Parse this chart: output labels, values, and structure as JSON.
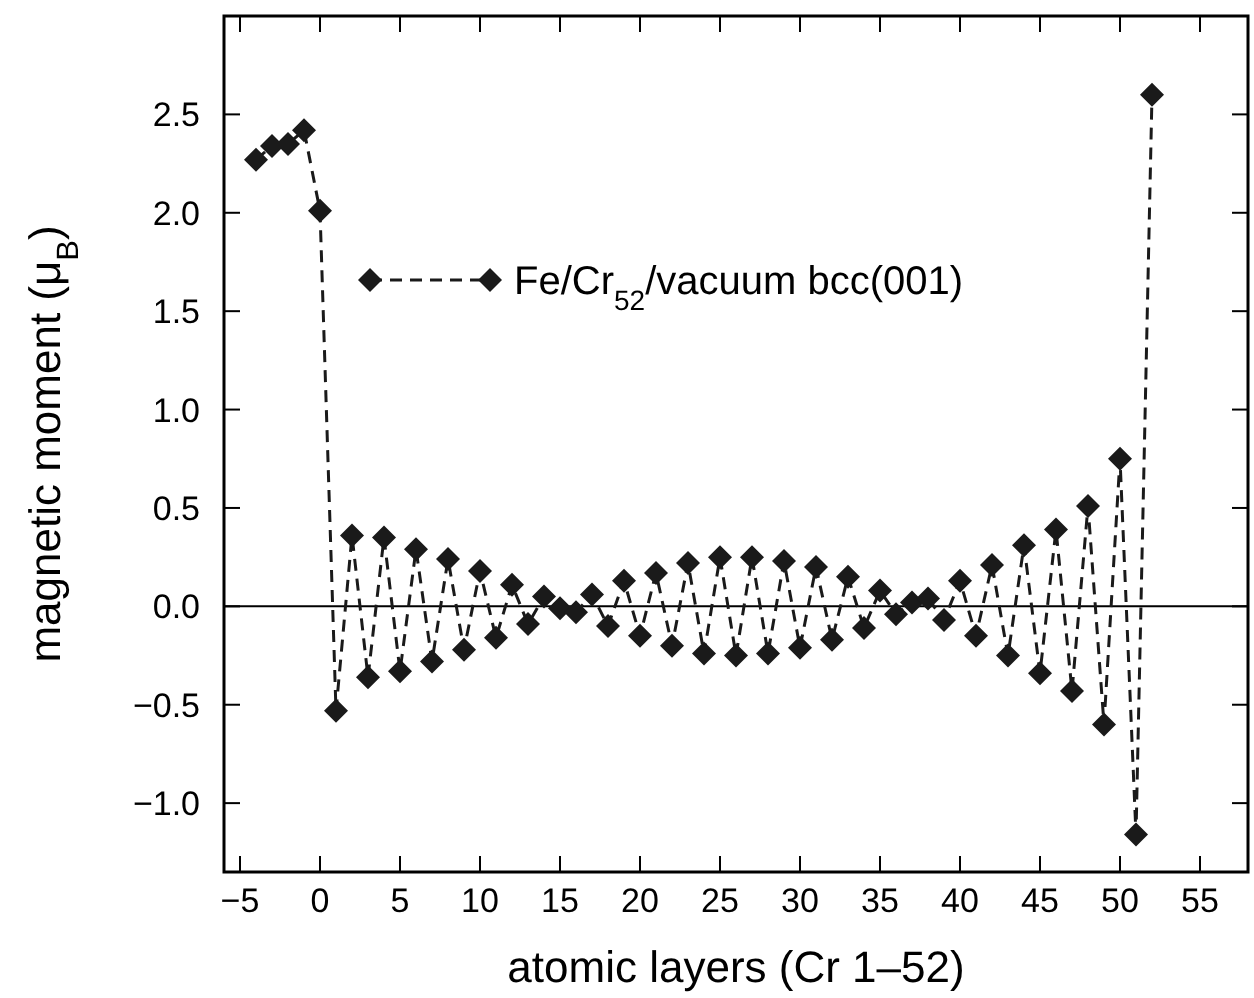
{
  "chart_data": {
    "type": "line",
    "xlabel": "atomic layers (Cr 1–52)",
    "ylabel": "magnetic moment (μ$_{B}$)",
    "x": [
      -4,
      -3,
      -2,
      -1,
      0,
      1,
      2,
      3,
      4,
      5,
      6,
      7,
      8,
      9,
      10,
      11,
      12,
      13,
      14,
      15,
      16,
      17,
      18,
      19,
      20,
      21,
      22,
      23,
      24,
      25,
      26,
      27,
      28,
      29,
      30,
      31,
      32,
      33,
      34,
      35,
      36,
      37,
      38,
      39,
      40,
      41,
      42,
      43,
      44,
      45,
      46,
      47,
      48,
      49,
      50,
      51,
      52
    ],
    "series": [
      {
        "name": "Fe/Cr$_{52}$/vacuum bcc(001)",
        "color": "#1a1a1a",
        "values": [
          2.27,
          2.34,
          2.35,
          2.42,
          2.01,
          -0.53,
          0.36,
          -0.36,
          0.35,
          -0.33,
          0.29,
          -0.28,
          0.24,
          -0.22,
          0.18,
          -0.16,
          0.11,
          -0.09,
          0.05,
          -0.01,
          -0.03,
          0.06,
          -0.1,
          0.13,
          -0.15,
          0.17,
          -0.2,
          0.22,
          -0.24,
          0.25,
          -0.25,
          0.25,
          -0.24,
          0.23,
          -0.21,
          0.2,
          -0.17,
          0.15,
          -0.11,
          0.08,
          -0.04,
          0.02,
          0.04,
          -0.07,
          0.13,
          -0.15,
          0.21,
          -0.25,
          0.31,
          -0.34,
          0.39,
          -0.43,
          0.51,
          -0.6,
          0.75,
          -1.16,
          2.6
        ]
      }
    ],
    "xlim": [
      -6,
      58
    ],
    "ylim": [
      -1.35,
      3.0
    ],
    "xticks": [
      {
        "value": -5,
        "label": "−5"
      },
      0,
      5,
      10,
      15,
      20,
      25,
      30,
      35,
      40,
      45,
      50,
      55
    ],
    "yticks": [
      {
        "value": -1,
        "label": "−1.0"
      },
      {
        "value": -0.5,
        "label": "−0.5"
      },
      {
        "value": 0,
        "label": "0.0"
      },
      {
        "value": 0.5,
        "label": "0.5"
      },
      {
        "value": 1,
        "label": "1.0"
      },
      {
        "value": 1.5,
        "label": "1.5"
      },
      {
        "value": 2,
        "label": "2.0"
      },
      {
        "value": 2.5,
        "label": "2.5"
      }
    ],
    "ref_lines": [
      {
        "axis": "y",
        "value": 0,
        "color": "#000000"
      }
    ],
    "marker": "diamond",
    "line_style": "dashed",
    "legend": "top",
    "grid": false
  }
}
